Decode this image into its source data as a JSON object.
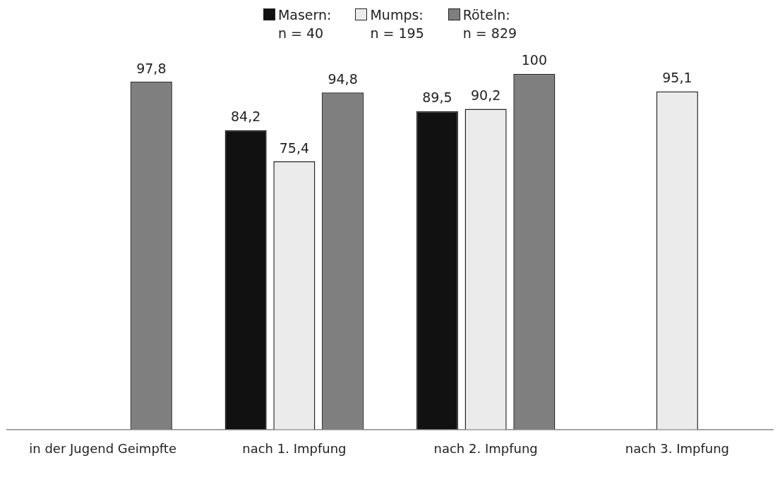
{
  "chart_data": {
    "type": "bar",
    "categories": [
      "in der Jugend Geimpfte",
      "nach 1. Impfung",
      "nach 2. Impfung",
      "nach 3. Impfung"
    ],
    "series": [
      {
        "name": "Masern:\nn = 40",
        "color": "#111111",
        "values": [
          null,
          84.2,
          89.5,
          null
        ],
        "value_labels": [
          null,
          "84,2",
          "89,5",
          null
        ]
      },
      {
        "name": "Mumps:\nn = 195",
        "color": "#ebebeb",
        "values": [
          null,
          75.4,
          90.2,
          95.1
        ],
        "value_labels": [
          null,
          "75,4",
          "90,2",
          "95,1"
        ]
      },
      {
        "name": "Röteln:\nn = 829",
        "color": "#7f7f7f",
        "values": [
          97.8,
          94.8,
          100,
          null
        ],
        "value_labels": [
          "97,8",
          "94,8",
          "100",
          null
        ]
      }
    ],
    "ylim": [
      0,
      100
    ],
    "tick_labels": "x",
    "grid": false,
    "legend": "top"
  }
}
